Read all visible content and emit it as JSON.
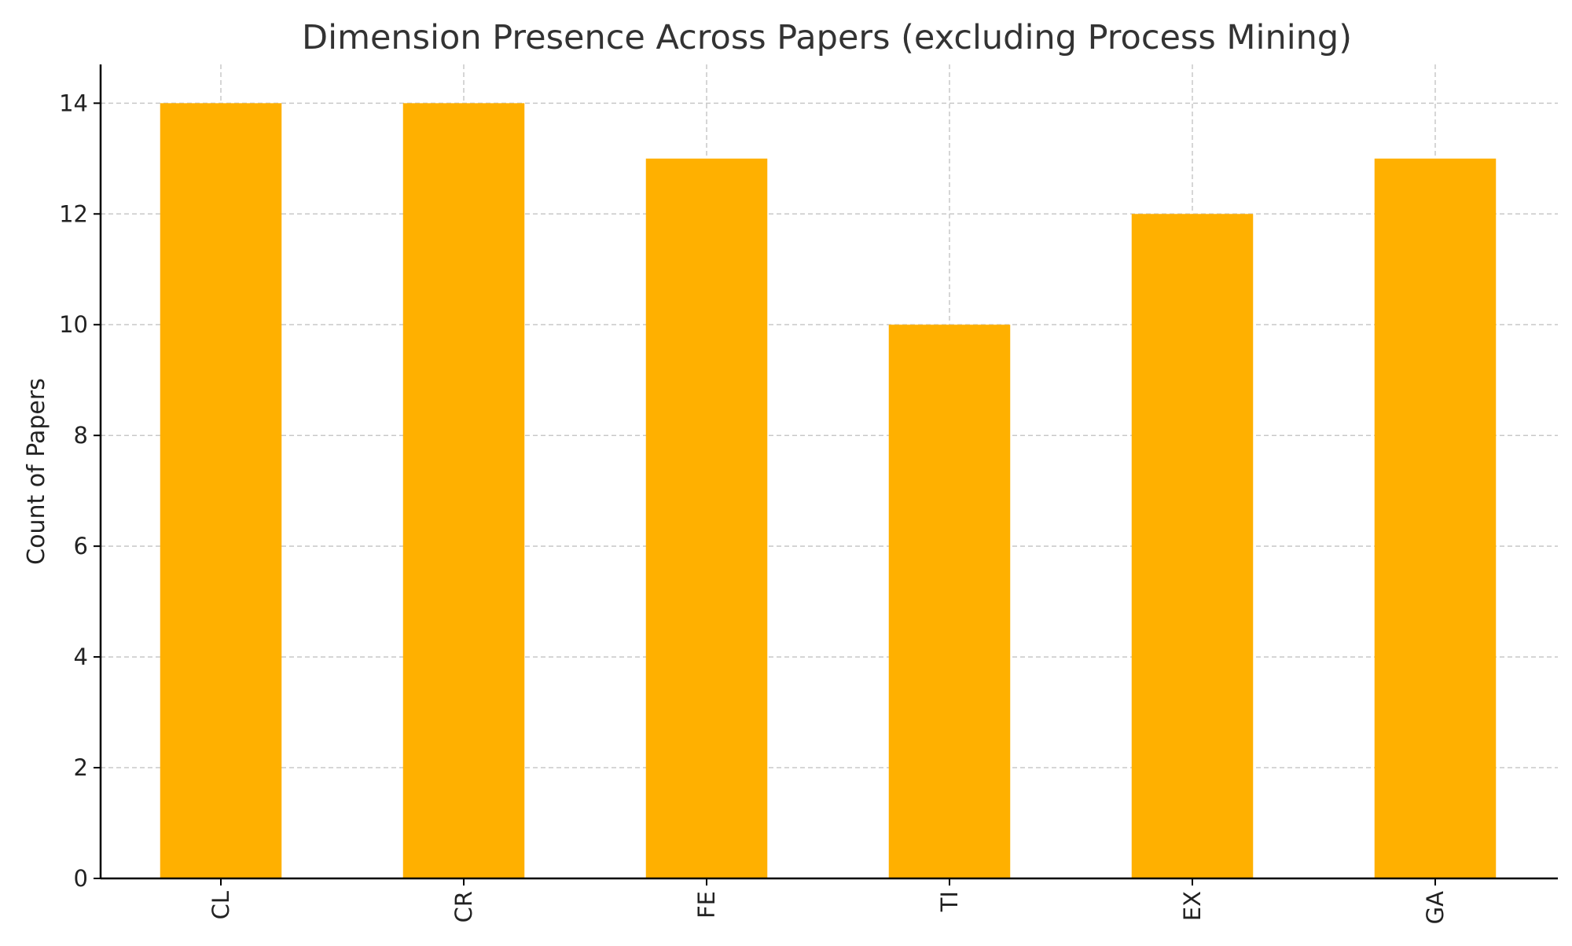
{
  "chart_data": {
    "type": "bar",
    "title": "Dimension Presence Across Papers (excluding Process Mining)",
    "xlabel": "",
    "ylabel": "Count of Papers",
    "categories": [
      "CL",
      "CR",
      "FE",
      "TI",
      "EX",
      "GA"
    ],
    "values": [
      14,
      14,
      13,
      10,
      12,
      13
    ],
    "ylim": [
      0,
      14.7
    ],
    "yticks": [
      0,
      2,
      4,
      6,
      8,
      10,
      12,
      14
    ],
    "x_tick_rotation": "vertical",
    "grid": true,
    "legend": "none",
    "bar_color": "#FFB000"
  }
}
